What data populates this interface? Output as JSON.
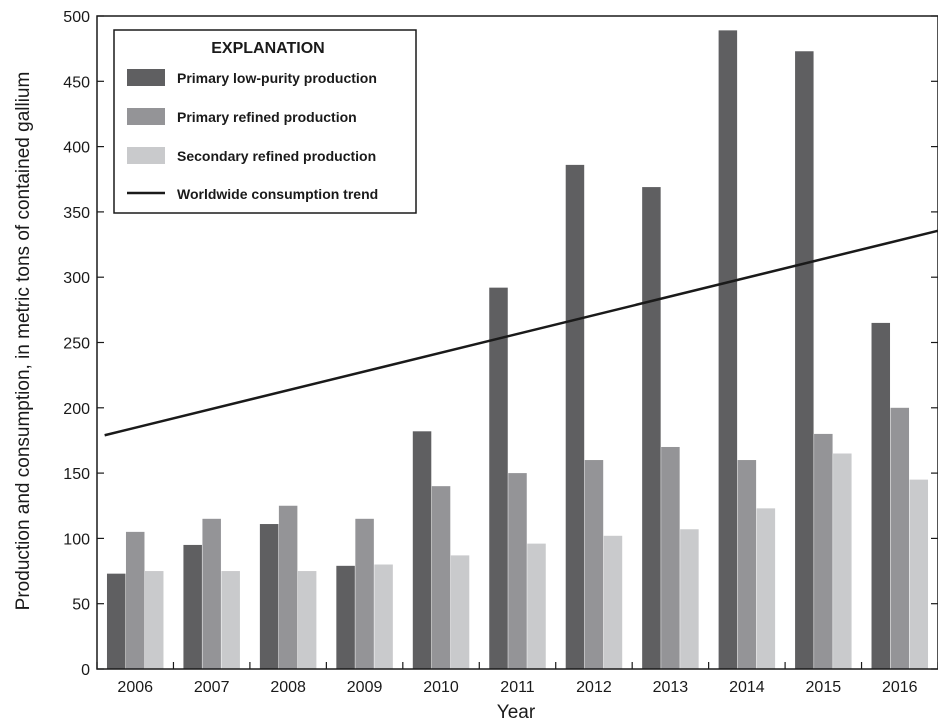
{
  "chart_data": {
    "type": "bar",
    "xlabel": "Year",
    "ylabel": "Production and consumption, in metric tons of contained gallium",
    "ylim": [
      0,
      500
    ],
    "yticks": [
      0,
      50,
      100,
      150,
      200,
      250,
      300,
      350,
      400,
      450,
      500
    ],
    "categories": [
      "2006",
      "2007",
      "2008",
      "2009",
      "2010",
      "2011",
      "2012",
      "2013",
      "2014",
      "2015",
      "2016"
    ],
    "legend_title": "EXPLANATION",
    "legend_position": "top-left",
    "grid": false,
    "series": [
      {
        "name": "Primary low-purity production",
        "type": "bar",
        "color": "#5f5f61",
        "values": [
          73,
          95,
          111,
          79,
          182,
          292,
          386,
          369,
          489,
          473,
          265
        ]
      },
      {
        "name": "Primary refined production",
        "type": "bar",
        "color": "#949497",
        "values": [
          105,
          115,
          125,
          115,
          140,
          150,
          160,
          170,
          160,
          180,
          200
        ]
      },
      {
        "name": "Secondary refined production",
        "type": "bar",
        "color": "#c9cacc",
        "values": [
          75,
          75,
          75,
          80,
          87,
          96,
          102,
          107,
          123,
          165,
          145
        ]
      },
      {
        "name": "Worldwide consumption trend",
        "type": "line",
        "color": "#1a1a1a",
        "x": [
          2005.6,
          2016.6
        ],
        "values": [
          179,
          337
        ]
      }
    ]
  }
}
